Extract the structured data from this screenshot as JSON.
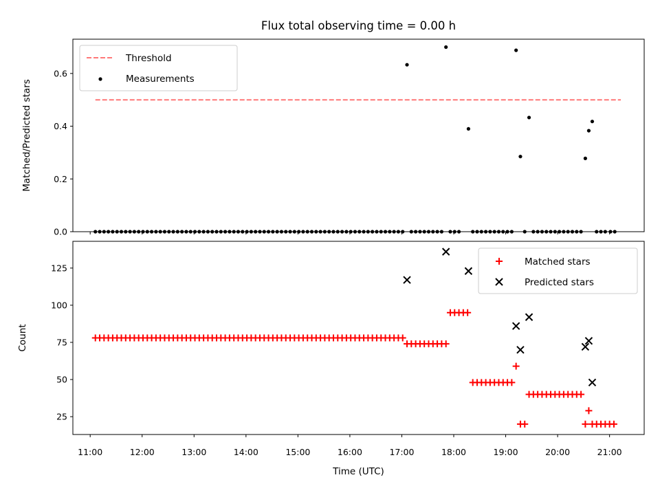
{
  "chart_data": [
    {
      "type": "scatter",
      "title": "Flux total observing time = 0.00 h",
      "ylabel": "Matched/Predicted stars",
      "xlabel": "",
      "ylim": [
        0,
        0.73
      ],
      "yticks": [
        "0.0",
        "0.2",
        "0.4",
        "0.6"
      ],
      "legend_position": "top-left",
      "threshold": {
        "name": "Threshold",
        "y": 0.5,
        "x_range": [
          "11:06",
          "21:13"
        ],
        "color": "#ff7777"
      },
      "series": [
        {
          "name": "Measurements",
          "color": "#000000",
          "points": [
            [
              "17:06",
              0.633
            ],
            [
              "17:51",
              0.7
            ],
            [
              "18:17",
              0.39
            ],
            [
              "19:12",
              0.688
            ],
            [
              "19:17",
              0.285
            ],
            [
              "19:27",
              0.433
            ],
            [
              "20:32",
              0.278
            ],
            [
              "20:36",
              0.383
            ],
            [
              "20:40",
              0.418
            ]
          ],
          "zero_runs": [
            {
              "start": "11:06",
              "end": "17:01",
              "step_min": 5
            },
            {
              "start": "17:11",
              "end": "17:46",
              "step_min": 5
            },
            {
              "start": "17:56",
              "end": "18:06",
              "step_min": 5
            },
            {
              "start": "18:22",
              "end": "19:07",
              "step_min": 5
            },
            {
              "start": "19:22",
              "end": "19:22",
              "step_min": 5
            },
            {
              "start": "19:32",
              "end": "20:27",
              "step_min": 5
            },
            {
              "start": "20:45",
              "end": "20:55",
              "step_min": 5
            },
            {
              "start": "21:01",
              "end": "21:06",
              "step_min": 5
            }
          ]
        }
      ]
    },
    {
      "type": "scatter",
      "title": "",
      "xlabel": "Time (UTC)",
      "ylabel": "Count",
      "ylim": [
        13,
        143
      ],
      "yticks": [
        "25",
        "50",
        "75",
        "100",
        "125"
      ],
      "xticks": [
        "11:00",
        "12:00",
        "13:00",
        "14:00",
        "15:00",
        "16:00",
        "17:00",
        "18:00",
        "19:00",
        "20:00",
        "21:00"
      ],
      "legend_position": "top-right",
      "series": [
        {
          "name": "Matched stars",
          "marker": "+",
          "color": "#ff0000",
          "runs": [
            {
              "start": "11:06",
              "end": "17:01",
              "step_min": 5,
              "value": 78
            },
            {
              "start": "17:06",
              "end": "17:51",
              "step_min": 5,
              "value": 74
            },
            {
              "start": "17:56",
              "end": "18:17",
              "step_min": 5,
              "value": 95
            },
            {
              "start": "18:22",
              "end": "19:07",
              "step_min": 5,
              "value": 48
            },
            {
              "start": "19:12",
              "end": "19:12",
              "step_min": 5,
              "value": 59
            },
            {
              "start": "19:17",
              "end": "19:22",
              "step_min": 5,
              "value": 20
            },
            {
              "start": "19:27",
              "end": "20:27",
              "step_min": 5,
              "value": 40
            },
            {
              "start": "20:32",
              "end": "20:32",
              "step_min": 5,
              "value": 20
            },
            {
              "start": "20:36",
              "end": "20:36",
              "step_min": 5,
              "value": 29
            },
            {
              "start": "20:40",
              "end": "21:06",
              "step_min": 5,
              "value": 20
            }
          ]
        },
        {
          "name": "Predicted stars",
          "marker": "x",
          "color": "#000000",
          "points": [
            [
              "17:06",
              117
            ],
            [
              "17:51",
              136
            ],
            [
              "18:17",
              123
            ],
            [
              "19:12",
              86
            ],
            [
              "19:17",
              70
            ],
            [
              "19:27",
              92
            ],
            [
              "20:32",
              72
            ],
            [
              "20:36",
              76
            ],
            [
              "20:40",
              48
            ]
          ]
        }
      ]
    }
  ]
}
